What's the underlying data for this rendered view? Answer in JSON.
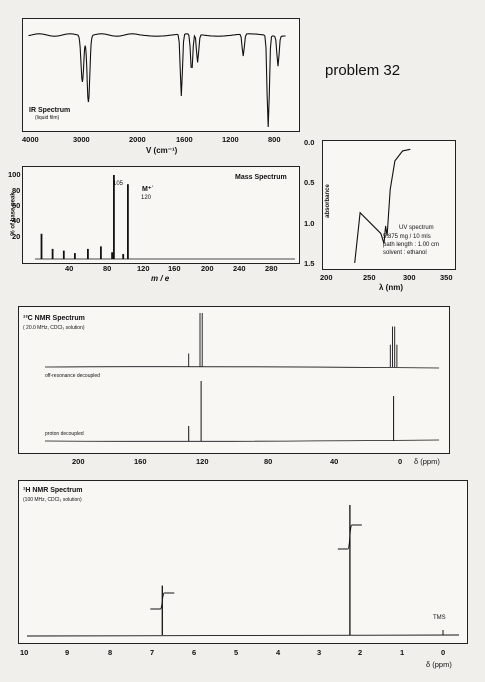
{
  "problem_label": "problem  32",
  "chart_data": [
    {
      "type": "line",
      "id": "ir",
      "title": "IR Spectrum",
      "subtitle": "(liquid film)",
      "xlabel": "V (cm⁻¹)",
      "x_ticks": [
        "4000",
        "3000",
        "2000",
        "1600",
        "1200",
        "800"
      ],
      "peaks_cm1": [
        3030,
        2920,
        1610,
        1515,
        1460,
        1040,
        810,
        720
      ],
      "line_color": "#111111"
    },
    {
      "type": "bar",
      "id": "ms",
      "title": "Mass Spectrum",
      "ylabel": "% of base peak",
      "xlabel": "m / e",
      "y_ticks": [
        "100",
        "80",
        "60",
        "40",
        "20"
      ],
      "x_ticks": [
        "40",
        "80",
        "120",
        "160",
        "200",
        "240",
        "280"
      ],
      "xlim": [
        20,
        300
      ],
      "ylim": [
        0,
        100
      ],
      "peaks": [
        {
          "mz": 27,
          "rel": 30
        },
        {
          "mz": 39,
          "rel": 12
        },
        {
          "mz": 51,
          "rel": 10
        },
        {
          "mz": 63,
          "rel": 7
        },
        {
          "mz": 77,
          "rel": 12
        },
        {
          "mz": 91,
          "rel": 15
        },
        {
          "mz": 103,
          "rel": 8
        },
        {
          "mz": 105,
          "rel": 100
        },
        {
          "mz": 115,
          "rel": 6
        },
        {
          "mz": 120,
          "rel": 89
        }
      ],
      "labels": {
        "base": "105",
        "mplus": "M⁺˙",
        "mplus_value": "120"
      }
    },
    {
      "type": "line",
      "id": "uv",
      "ylabel": "absorbance",
      "xlabel": "λ (nm)",
      "y_ticks": [
        "0.0",
        "0.5",
        "1.0",
        "1.5"
      ],
      "x_ticks": [
        "200",
        "250",
        "300",
        "350"
      ],
      "xlim": [
        200,
        350
      ],
      "ylim": [
        0,
        1.5
      ],
      "note_title": "UV spectrum",
      "note_lines": [
        "5.875 mg / 10 mls",
        "path length : 1.00 cm",
        "solvent : ethanol"
      ],
      "series": [
        {
          "x": [
            228,
            235,
            250,
            262,
            266,
            268,
            270,
            274,
            280,
            290,
            300
          ],
          "y": [
            1.5,
            0.85,
            1.0,
            1.12,
            1.25,
            1.02,
            1.15,
            0.55,
            0.18,
            0.05,
            0.03
          ]
        }
      ]
    },
    {
      "type": "bar",
      "id": "c13",
      "title": "¹³C NMR Spectrum",
      "subtitle": "( 20.0 MHz, CDCl₃ solution)",
      "trace_labels": [
        "off-resonance decoupled",
        "proton decoupled"
      ],
      "x_ticks": [
        "200",
        "160",
        "120",
        "80",
        "40",
        "0"
      ],
      "xlabel": "δ (ppm)",
      "xlim": [
        220,
        0
      ],
      "peaks_ppm": [
        {
          "ppm": 136,
          "h": 0.25
        },
        {
          "ppm": 129,
          "h": 1.0
        },
        {
          "ppm": 21,
          "h": 0.75
        }
      ]
    },
    {
      "type": "line",
      "id": "h1",
      "title": "¹H NMR Spectrum",
      "subtitle": "(100 MHz, CDCl₃ solution)",
      "xlabel": "δ (ppm)",
      "x_ticks": [
        "10",
        "9",
        "8",
        "7",
        "6",
        "5",
        "4",
        "3",
        "2",
        "1",
        "0"
      ],
      "xlim": [
        10,
        0
      ],
      "tms_label": "TMS",
      "peaks_ppm": [
        {
          "ppm": 6.78,
          "h": 0.38,
          "integration": 2
        },
        {
          "ppm": 2.25,
          "h": 1.0,
          "integration": 3
        }
      ]
    }
  ]
}
